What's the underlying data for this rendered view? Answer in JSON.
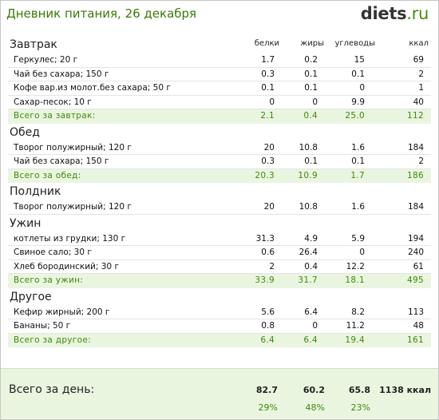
{
  "title": "Дневник питания, 26 декабря",
  "logo": {
    "brand": "diets",
    "tld": ".ru"
  },
  "columns": {
    "protein": "белки",
    "fat": "жиры",
    "carbs": "углеводы",
    "kcal": "ккал"
  },
  "sections": [
    {
      "title": "Завтрак",
      "items": [
        {
          "name": "Геркулес; 20 г",
          "p": "1.7",
          "f": "0.2",
          "c": "15",
          "k": "69"
        },
        {
          "name": "Чай без сахара; 150 г",
          "p": "0.3",
          "f": "0.1",
          "c": "0.1",
          "k": "2"
        },
        {
          "name": "Кофе вар.из молот.без сахара; 50 г",
          "p": "0.1",
          "f": "0.1",
          "c": "0",
          "k": "1"
        },
        {
          "name": "Сахар-песок; 10 г",
          "p": "0",
          "f": "0",
          "c": "9.9",
          "k": "40"
        }
      ],
      "total": {
        "name": "Всего за завтрак:",
        "p": "2.1",
        "f": "0.4",
        "c": "25.0",
        "k": "112"
      }
    },
    {
      "title": "Обед",
      "items": [
        {
          "name": "Творог полужирный; 120 г",
          "p": "20",
          "f": "10.8",
          "c": "1.6",
          "k": "184"
        },
        {
          "name": "Чай без сахара; 150 г",
          "p": "0.3",
          "f": "0.1",
          "c": "0.1",
          "k": "2"
        }
      ],
      "total": {
        "name": "Всего за обед:",
        "p": "20.3",
        "f": "10.9",
        "c": "1.7",
        "k": "186"
      }
    },
    {
      "title": "Полдник",
      "items": [
        {
          "name": "Творог полужирный; 120 г",
          "p": "20",
          "f": "10.8",
          "c": "1.6",
          "k": "184"
        }
      ],
      "total": null
    },
    {
      "title": "Ужин",
      "items": [
        {
          "name": "котлеты из грудки; 130 г",
          "p": "31.3",
          "f": "4.9",
          "c": "5.9",
          "k": "194"
        },
        {
          "name": "Свиное сало; 30 г",
          "p": "0.6",
          "f": "26.4",
          "c": "0",
          "k": "240"
        },
        {
          "name": "Хлеб бородинский; 30 г",
          "p": "2",
          "f": "0.4",
          "c": "12.2",
          "k": "61"
        }
      ],
      "total": {
        "name": "Всего за ужин:",
        "p": "33.9",
        "f": "31.7",
        "c": "18.1",
        "k": "495"
      }
    },
    {
      "title": "Другое",
      "items": [
        {
          "name": "Кефир жирный; 200 г",
          "p": "5.6",
          "f": "6.4",
          "c": "8.2",
          "k": "113"
        },
        {
          "name": "Бананы; 50 г",
          "p": "0.8",
          "f": "0",
          "c": "11.2",
          "k": "48"
        }
      ],
      "total": {
        "name": "Всего за другое:",
        "p": "6.4",
        "f": "6.4",
        "c": "19.4",
        "k": "161"
      }
    }
  ],
  "day_total": {
    "label": "Всего за день:",
    "p": "82.7",
    "f": "60.2",
    "c": "65.8",
    "k": "1138 ккал",
    "p_pct": "29%",
    "f_pct": "48%",
    "c_pct": "23%"
  },
  "colors": {
    "title": "#3c7a06",
    "total_bg": "#eaf5e0",
    "total_text": "#3c8a0a"
  }
}
